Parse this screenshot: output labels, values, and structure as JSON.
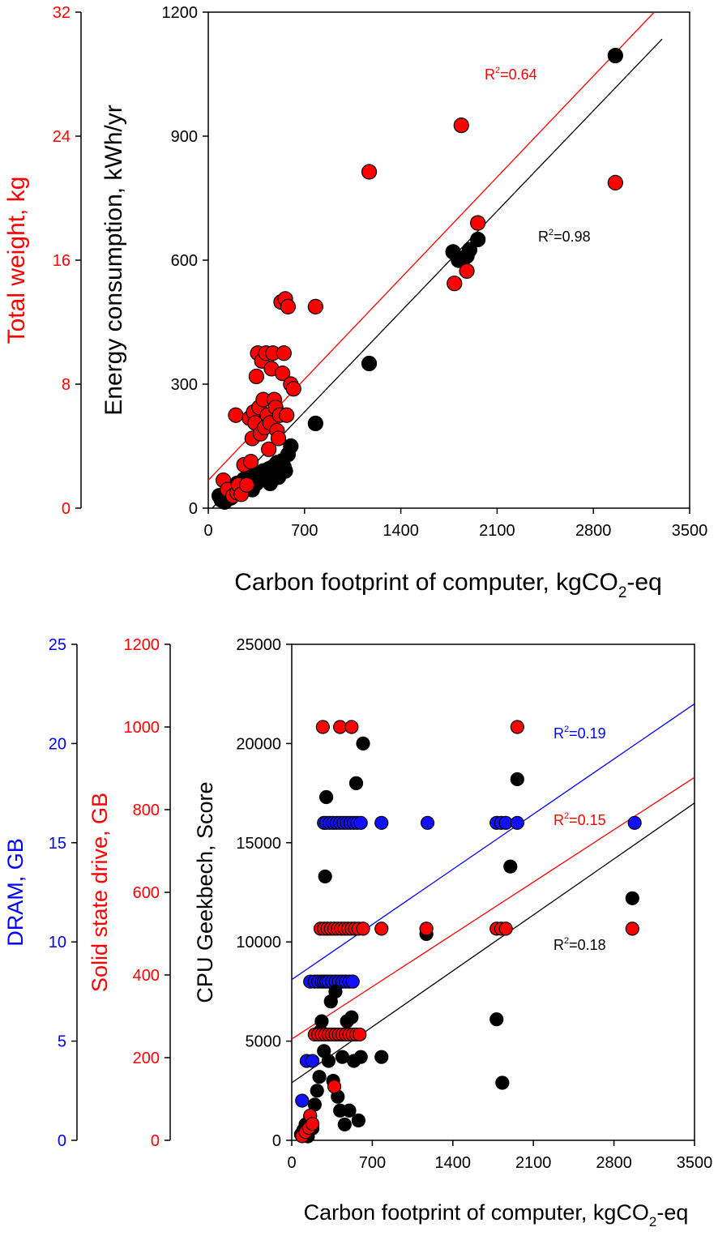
{
  "colors": {
    "red": "#ff0000",
    "black": "#000000",
    "blue": "#0000ff",
    "red_fill": "#ff0000",
    "blue_fill": "#1010ff"
  },
  "chart_data": [
    {
      "type": "scatter",
      "x_range": [
        0,
        3500
      ],
      "x_ticks": [
        "0",
        "700",
        "1400",
        "2100",
        "2800",
        "3500"
      ],
      "xlabel": {
        "main": "Carbon footprint of computer, kgCO",
        "sub": "2",
        "tail": "-eq"
      },
      "y_left_range": [
        0,
        1200
      ],
      "y_left_ticks": [
        "0",
        "300",
        "600",
        "900",
        "1200"
      ],
      "ylabel_left": "Energy consumption, kWh/yr",
      "y_outer_range": [
        0,
        32
      ],
      "y_outer_ticks": [
        "0",
        "8",
        "16",
        "24",
        "32"
      ],
      "ylabel_outer": "Total weight, kg",
      "series": [
        {
          "name": "Energy consumption",
          "color": "black",
          "r2_label": {
            "main": "R",
            "sup": "2",
            "tail": "=0.98"
          },
          "fit": {
            "x": [
              0,
              3300
            ],
            "y": [
              -10,
              1135
            ]
          },
          "points": [
            [
              80,
              30
            ],
            [
              95,
              20
            ],
            [
              110,
              22
            ],
            [
              120,
              15
            ],
            [
              130,
              25
            ],
            [
              150,
              35
            ],
            [
              165,
              25
            ],
            [
              180,
              30
            ],
            [
              200,
              45
            ],
            [
              210,
              60
            ],
            [
              220,
              40
            ],
            [
              240,
              55
            ],
            [
              260,
              70
            ],
            [
              280,
              50
            ],
            [
              300,
              65
            ],
            [
              320,
              45
            ],
            [
              340,
              80
            ],
            [
              350,
              60
            ],
            [
              360,
              85
            ],
            [
              380,
              75
            ],
            [
              400,
              90
            ],
            [
              420,
              70
            ],
            [
              440,
              95
            ],
            [
              450,
              60
            ],
            [
              470,
              100
            ],
            [
              490,
              85
            ],
            [
              500,
              110
            ],
            [
              510,
              75
            ],
            [
              520,
              95
            ],
            [
              540,
              115
            ],
            [
              550,
              100
            ],
            [
              560,
              90
            ],
            [
              580,
              130
            ],
            [
              600,
              150
            ],
            [
              780,
              205
            ],
            [
              1170,
              350
            ],
            [
              1780,
              620
            ],
            [
              1820,
              600
            ],
            [
              1880,
              610
            ],
            [
              1900,
              625
            ],
            [
              1960,
              650
            ],
            [
              2960,
              1095
            ]
          ]
        },
        {
          "name": "Total weight",
          "color": "red",
          "axis": "outer",
          "r2_label": {
            "main": "R",
            "sup": "2",
            "tail": "=0.64"
          },
          "fit": {
            "x": [
              0,
              3350
            ],
            "y": [
              1.8,
              33
            ]
          },
          "points": [
            [
              110,
              1.8
            ],
            [
              140,
              1.2
            ],
            [
              180,
              0.8
            ],
            [
              200,
              6
            ],
            [
              210,
              1
            ],
            [
              220,
              1.5
            ],
            [
              240,
              0.9
            ],
            [
              260,
              2.8
            ],
            [
              280,
              1.5
            ],
            [
              300,
              5.8
            ],
            [
              310,
              3
            ],
            [
              320,
              4.5
            ],
            [
              330,
              6.2
            ],
            [
              340,
              5.5
            ],
            [
              350,
              8.5
            ],
            [
              360,
              10
            ],
            [
              370,
              6.5
            ],
            [
              380,
              4.8
            ],
            [
              390,
              9.5
            ],
            [
              400,
              7
            ],
            [
              410,
              5.2
            ],
            [
              420,
              10
            ],
            [
              430,
              6
            ],
            [
              440,
              3.8
            ],
            [
              450,
              5.5
            ],
            [
              460,
              9
            ],
            [
              470,
              10
            ],
            [
              480,
              7
            ],
            [
              490,
              6.5
            ],
            [
              500,
              5
            ],
            [
              510,
              4.5
            ],
            [
              520,
              6
            ],
            [
              530,
              13.3
            ],
            [
              540,
              8.7
            ],
            [
              550,
              10
            ],
            [
              560,
              13.5
            ],
            [
              570,
              6
            ],
            [
              580,
              13
            ],
            [
              600,
              8
            ],
            [
              620,
              7.7
            ],
            [
              780,
              13
            ],
            [
              1170,
              21.7
            ],
            [
              1790,
              14.5
            ],
            [
              1840,
              24.7
            ],
            [
              1880,
              15.3
            ],
            [
              1960,
              18.4
            ],
            [
              2960,
              21
            ]
          ]
        }
      ],
      "r2_positions_note": "labels placed near fit lines"
    },
    {
      "type": "scatter",
      "x_range": [
        0,
        3500
      ],
      "x_ticks": [
        "0",
        "700",
        "1400",
        "2100",
        "2800",
        "3500"
      ],
      "xlabel": {
        "main": "Carbon footprint of computer, kgCO",
        "sub": "2",
        "tail": "-eq"
      },
      "y_left_range": [
        0,
        25000
      ],
      "y_left_ticks": [
        "0",
        "5000",
        "10000",
        "15000",
        "20000",
        "25000"
      ],
      "ylabel_left": "CPU Geekbech, Score",
      "y_mid_range": [
        0,
        1200
      ],
      "y_mid_ticks": [
        "0",
        "200",
        "400",
        "600",
        "800",
        "1000",
        "1200"
      ],
      "ylabel_mid": {
        "part1": "Solid state drive, ",
        "part2": "GB"
      },
      "y_outer_range": [
        0,
        25
      ],
      "y_outer_ticks": [
        "0",
        "5",
        "10",
        "15",
        "20",
        "25"
      ],
      "ylabel_outer": {
        "part1": "DRAM, ",
        "part2": "GB"
      },
      "series": [
        {
          "name": "DRAM",
          "color": "blue",
          "axis": "outer",
          "r2_label": {
            "main": "R",
            "sup": "2",
            "tail": "=0.19"
          },
          "fit": {
            "x": [
              0,
              3500
            ],
            "y": [
              8.1,
              22
            ]
          },
          "points": [
            [
              90,
              2
            ],
            [
              130,
              4
            ],
            [
              180,
              4
            ],
            [
              160,
              8
            ],
            [
              200,
              8
            ],
            [
              230,
              8
            ],
            [
              260,
              8
            ],
            [
              280,
              8
            ],
            [
              300,
              8
            ],
            [
              320,
              8
            ],
            [
              350,
              8
            ],
            [
              380,
              8
            ],
            [
              410,
              8
            ],
            [
              440,
              8
            ],
            [
              470,
              8
            ],
            [
              500,
              8
            ],
            [
              530,
              8
            ],
            [
              280,
              16
            ],
            [
              300,
              16
            ],
            [
              330,
              16
            ],
            [
              360,
              16
            ],
            [
              390,
              16
            ],
            [
              420,
              16
            ],
            [
              450,
              16
            ],
            [
              480,
              16
            ],
            [
              510,
              16
            ],
            [
              540,
              16
            ],
            [
              570,
              16
            ],
            [
              600,
              16
            ],
            [
              780,
              16
            ],
            [
              1180,
              16
            ],
            [
              1780,
              16
            ],
            [
              1820,
              16
            ],
            [
              1860,
              16
            ],
            [
              1960,
              16
            ],
            [
              2980,
              16
            ]
          ]
        },
        {
          "name": "CPU Geekbench",
          "color": "black",
          "r2_label": {
            "main": "R",
            "sup": "2",
            "tail": "=0.18"
          },
          "fit": {
            "x": [
              0,
              3500
            ],
            "y": [
              2900,
              17000
            ]
          },
          "points": [
            [
              80,
              300
            ],
            [
              100,
              500
            ],
            [
              120,
              800
            ],
            [
              140,
              200
            ],
            [
              160,
              1200
            ],
            [
              180,
              600
            ],
            [
              200,
              1800
            ],
            [
              220,
              2500
            ],
            [
              240,
              3200
            ],
            [
              250,
              5500
            ],
            [
              260,
              6000
            ],
            [
              280,
              4500
            ],
            [
              290,
              13300
            ],
            [
              300,
              17300
            ],
            [
              320,
              4000
            ],
            [
              340,
              7000
            ],
            [
              360,
              3000
            ],
            [
              380,
              7500
            ],
            [
              400,
              2200
            ],
            [
              420,
              1500
            ],
            [
              440,
              4200
            ],
            [
              460,
              800
            ],
            [
              480,
              6000
            ],
            [
              500,
              1500
            ],
            [
              520,
              6200
            ],
            [
              540,
              4000
            ],
            [
              560,
              18000
            ],
            [
              580,
              1000
            ],
            [
              600,
              4200
            ],
            [
              620,
              20000
            ],
            [
              780,
              4200
            ],
            [
              1170,
              10400
            ],
            [
              1780,
              6100
            ],
            [
              1830,
              2900
            ],
            [
              1900,
              13800
            ],
            [
              1960,
              18200
            ],
            [
              2960,
              12200
            ]
          ]
        },
        {
          "name": "Solid state drive",
          "color": "red",
          "axis": "mid",
          "r2_label": {
            "main": "R",
            "sup": "2",
            "tail": "=0.15"
          },
          "fit": {
            "x": [
              0,
              3500
            ],
            "y": [
              245,
              878
            ]
          },
          "points": [
            [
              90,
              10
            ],
            [
              120,
              20
            ],
            [
              150,
              30
            ],
            [
              160,
              60
            ],
            [
              180,
              40
            ],
            [
              200,
              256
            ],
            [
              230,
              256
            ],
            [
              260,
              256
            ],
            [
              290,
              256
            ],
            [
              320,
              256
            ],
            [
              350,
              256
            ],
            [
              380,
              256
            ],
            [
              410,
              256
            ],
            [
              440,
              256
            ],
            [
              470,
              256
            ],
            [
              500,
              256
            ],
            [
              530,
              256
            ],
            [
              560,
              256
            ],
            [
              590,
              256
            ],
            [
              250,
              512
            ],
            [
              280,
              512
            ],
            [
              310,
              512
            ],
            [
              340,
              512
            ],
            [
              370,
              512
            ],
            [
              400,
              512
            ],
            [
              430,
              512
            ],
            [
              460,
              512
            ],
            [
              490,
              512
            ],
            [
              520,
              512
            ],
            [
              550,
              512
            ],
            [
              580,
              512
            ],
            [
              620,
              512
            ],
            [
              780,
              512
            ],
            [
              1170,
              512
            ],
            [
              1780,
              512
            ],
            [
              1820,
              512
            ],
            [
              1860,
              512
            ],
            [
              2960,
              512
            ],
            [
              270,
              1000
            ],
            [
              420,
              1000
            ],
            [
              520,
              1000
            ],
            [
              1960,
              1000
            ],
            [
              370,
              130
            ]
          ]
        }
      ]
    }
  ]
}
